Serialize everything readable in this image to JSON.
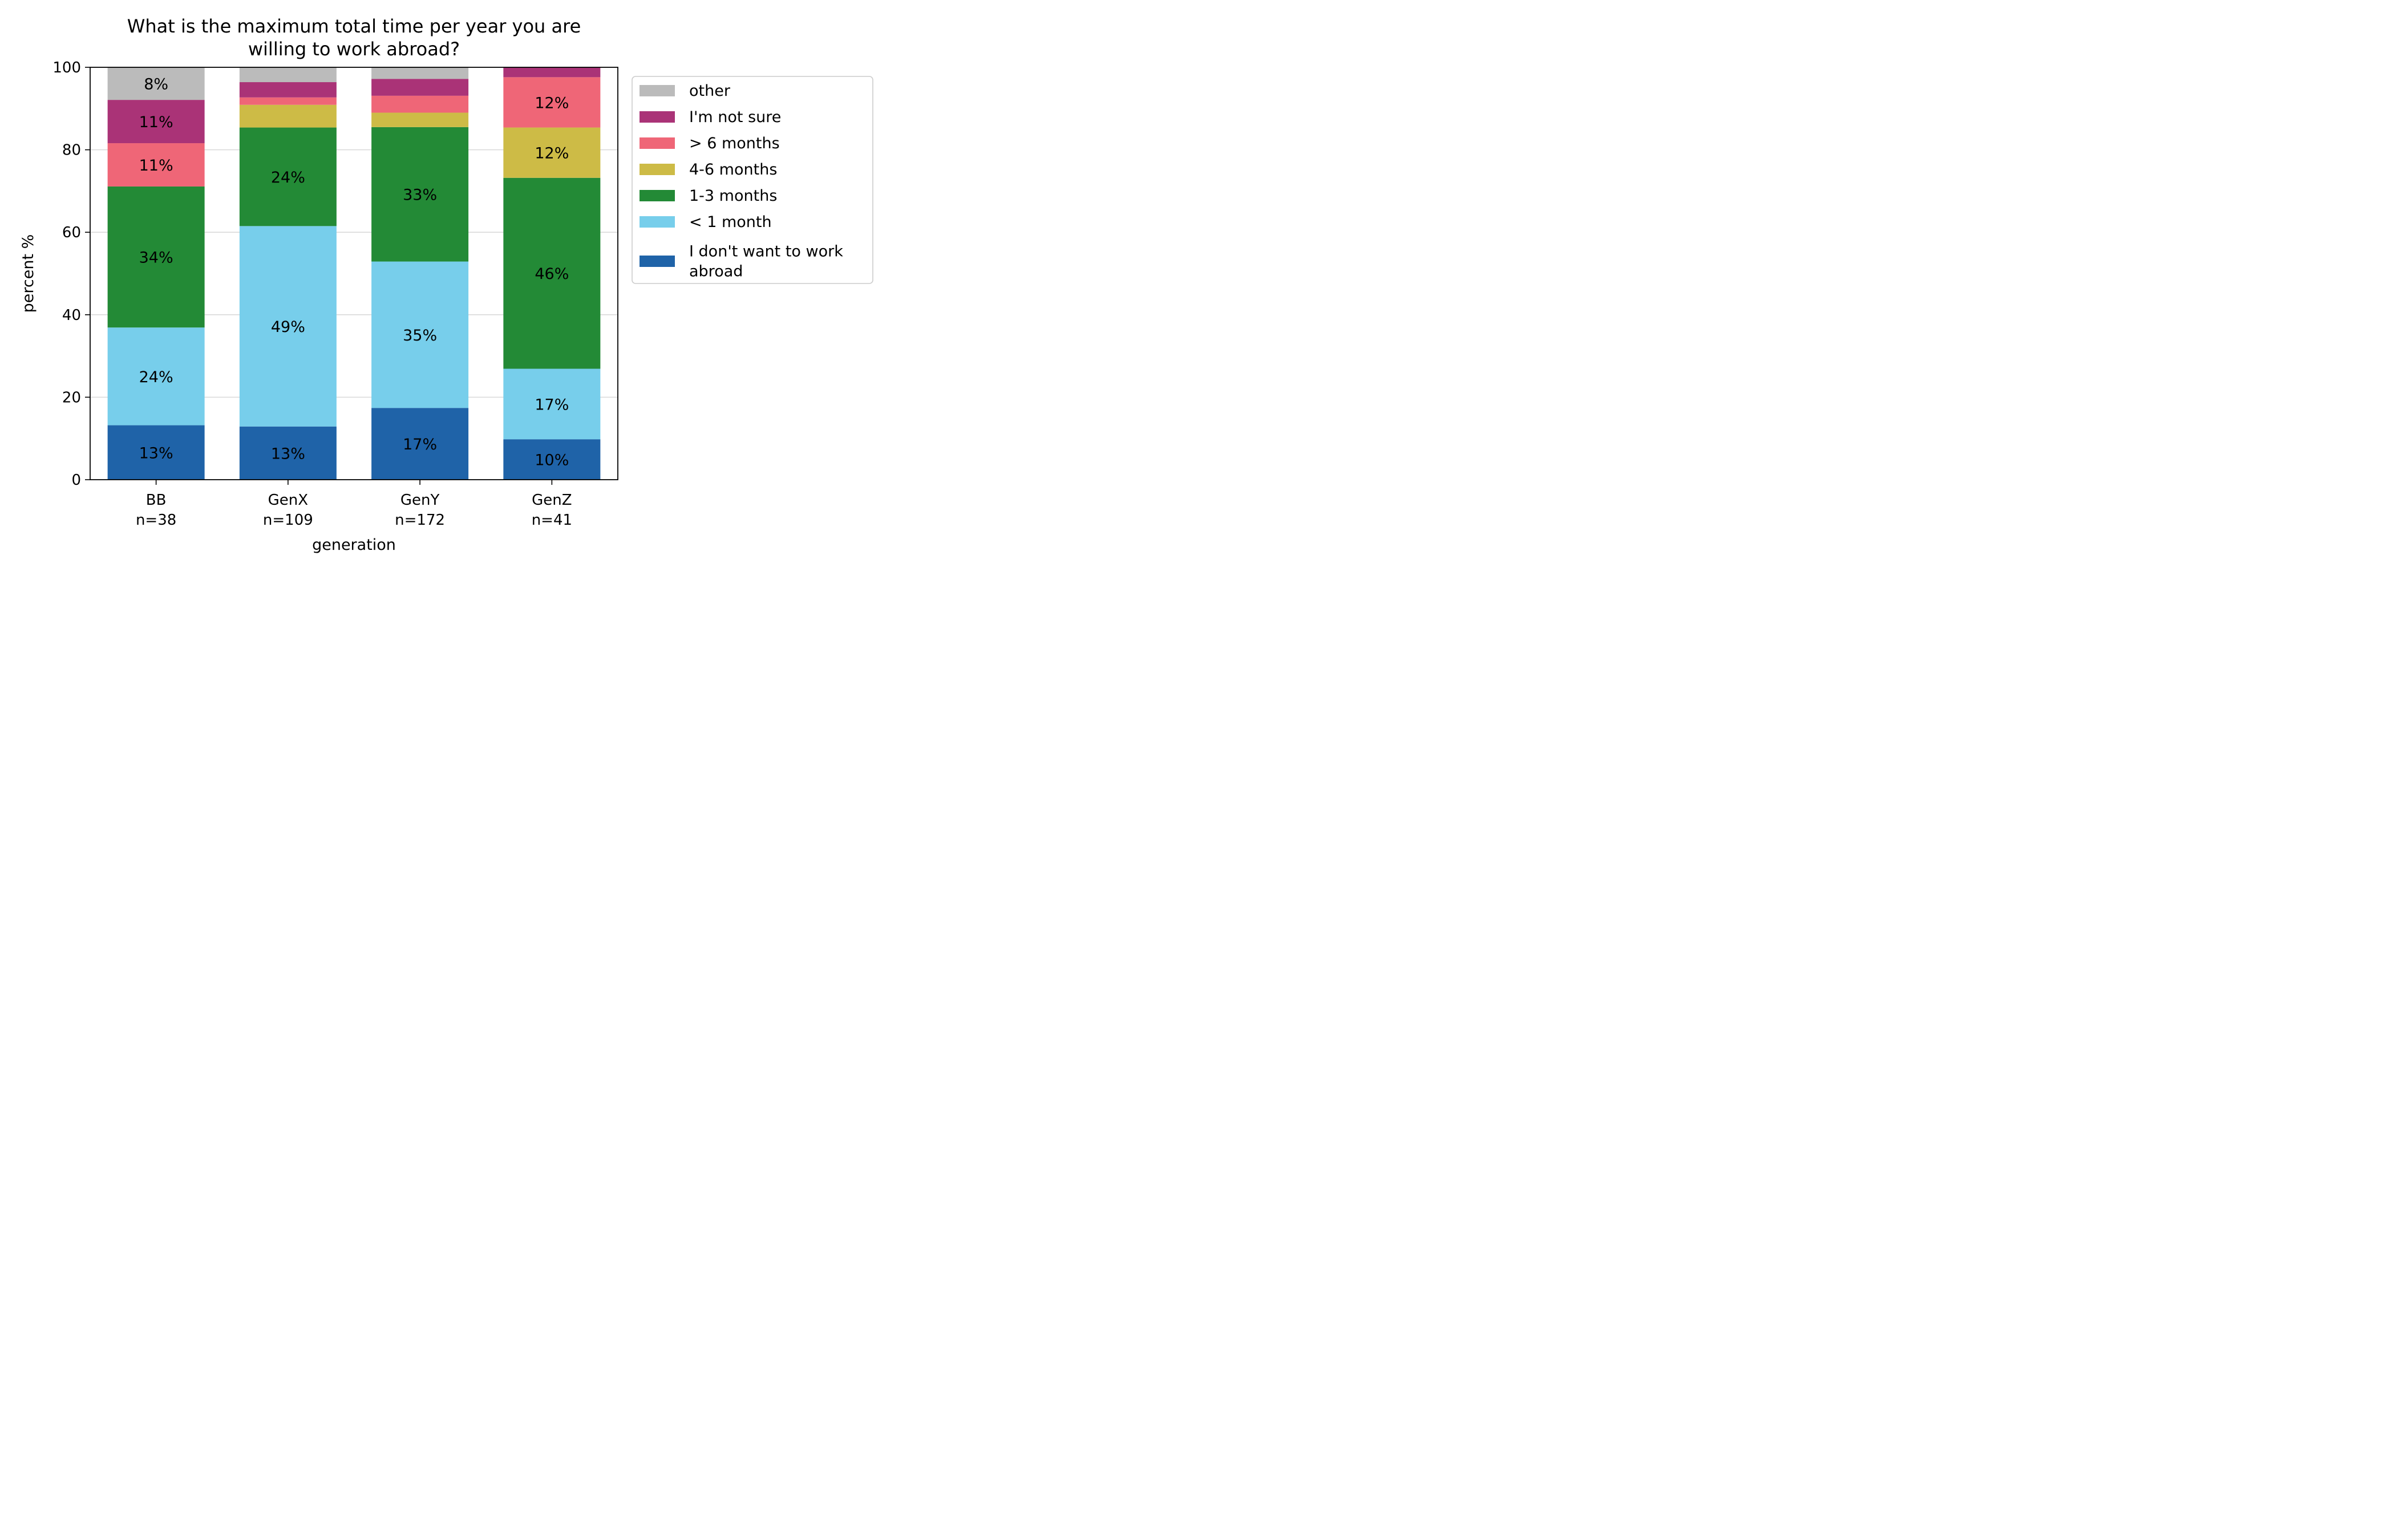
{
  "chart_data": {
    "type": "bar",
    "stacked": true,
    "title": [
      "What is the maximum total time per year you are",
      "willing to work abroad?"
    ],
    "xlabel": "generation",
    "ylabel": "percent %",
    "ylim": [
      0,
      100
    ],
    "yticks": [
      "0",
      "20",
      "40",
      "60",
      "80",
      "100"
    ],
    "grid": "y",
    "legend_position": "outside-right-top",
    "categories": [
      {
        "name": "BB",
        "n": "n=38"
      },
      {
        "name": "GenX",
        "n": "n=109"
      },
      {
        "name": "GenY",
        "n": "n=172"
      },
      {
        "name": "GenZ",
        "n": "n=41"
      }
    ],
    "series": [
      {
        "name": "I don't want to work abroad",
        "legend_lines": [
          "I don't want to work",
          "abroad"
        ],
        "color": "#1f63a8",
        "values": [
          13.2,
          12.9,
          17.4,
          9.8
        ],
        "labels": [
          "13%",
          "13%",
          "17%",
          "10%"
        ]
      },
      {
        "name": "< 1 month",
        "legend_lines": [
          "< 1 month"
        ],
        "color": "#77ceeb",
        "values": [
          23.7,
          48.6,
          35.5,
          17.1
        ],
        "labels": [
          "24%",
          "49%",
          "35%",
          "17%"
        ]
      },
      {
        "name": "1-3 months",
        "legend_lines": [
          "1-3 months"
        ],
        "color": "#238a36",
        "values": [
          34.2,
          23.9,
          32.6,
          46.3
        ],
        "labels": [
          "34%",
          "24%",
          "33%",
          "46%"
        ]
      },
      {
        "name": "4-6 months",
        "legend_lines": [
          "4-6 months"
        ],
        "color": "#cdbb46",
        "values": [
          0,
          5.5,
          3.5,
          12.2
        ],
        "labels": [
          "",
          "",
          "",
          "12%"
        ]
      },
      {
        "name": "> 6 months",
        "legend_lines": [
          "> 6 months"
        ],
        "color": "#ef6677",
        "values": [
          10.5,
          1.8,
          4.1,
          12.2
        ],
        "labels": [
          "11%",
          "",
          "",
          "12%"
        ]
      },
      {
        "name": "I'm not sure",
        "legend_lines": [
          "I'm not sure"
        ],
        "color": "#aa3377",
        "values": [
          10.5,
          3.7,
          4.1,
          2.4
        ],
        "labels": [
          "11%",
          "",
          "",
          ""
        ]
      },
      {
        "name": "other",
        "legend_lines": [
          "other"
        ],
        "color": "#bbbbbb",
        "values": [
          7.9,
          3.6,
          2.8,
          0
        ],
        "labels": [
          "8%",
          "",
          "",
          ""
        ]
      }
    ]
  }
}
